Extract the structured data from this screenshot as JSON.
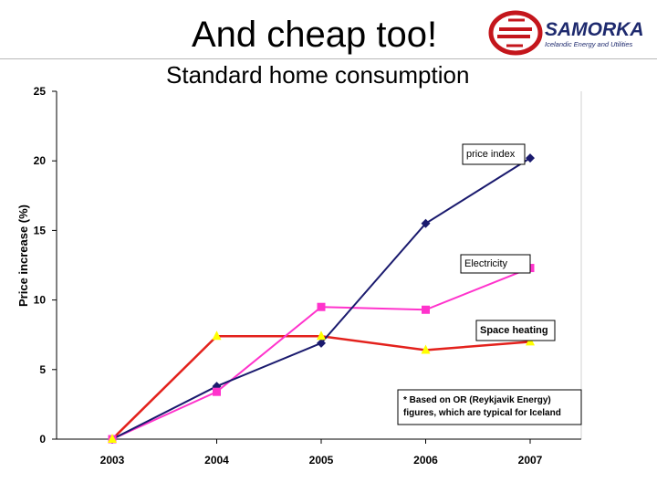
{
  "slide": {
    "title": "And cheap too!",
    "logo": {
      "name": "SAMORKA",
      "tagline": "Icelandic Energy and Utilities",
      "color": "#c4161c",
      "text_color": "#1e2a6e"
    }
  },
  "chart_data": {
    "type": "line",
    "title": "Standard home consumption",
    "ylabel": "Price increase (%)",
    "xlabel": "",
    "categories": [
      "2003",
      "2004",
      "2005",
      "2006",
      "2007"
    ],
    "ylim": [
      0,
      25
    ],
    "yticks": [
      0,
      5,
      10,
      15,
      20,
      25
    ],
    "series": [
      {
        "name": "price index",
        "color": "#1a1a6e",
        "marker": "diamond",
        "values": [
          0,
          3.8,
          6.9,
          15.5,
          20.2
        ]
      },
      {
        "name": "Electricity",
        "color": "#ff33cc",
        "marker": "square",
        "values": [
          0,
          3.4,
          9.5,
          9.3,
          12.3
        ]
      },
      {
        "name": "Space heating",
        "color": "#e3211c",
        "marker": "triangle",
        "marker_color": "#ffff00",
        "values": [
          0,
          7.4,
          7.4,
          6.4,
          7.0
        ]
      }
    ],
    "annotations": {
      "series_labels": [
        "price index",
        "Electricity",
        "Space heating"
      ],
      "footnote_line1": "* Based on OR (Reykjavik Energy)",
      "footnote_line2": "figures, which are typical for Iceland"
    }
  }
}
